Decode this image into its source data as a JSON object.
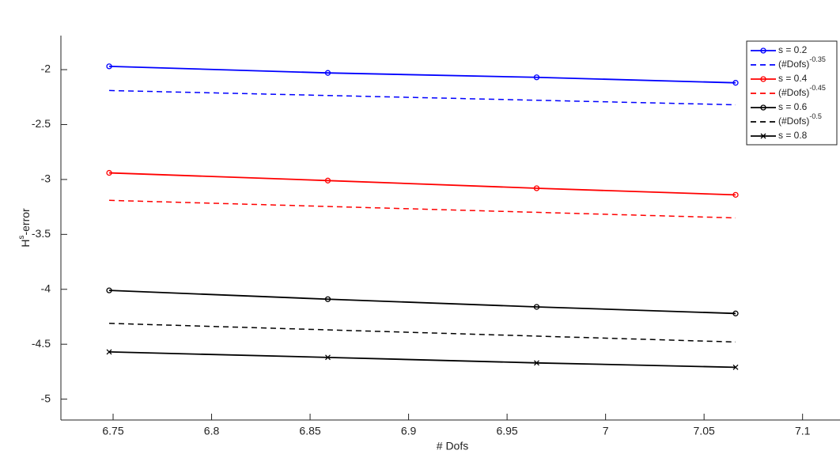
{
  "chart_data": {
    "type": "line",
    "xlabel": "# Dofs",
    "ylabel": {
      "base": "H",
      "sup": "s",
      "rest": "-error"
    },
    "xlim": [
      6.7235,
      7.119
    ],
    "ylim": [
      -5.19,
      -1.69
    ],
    "xticks": [
      6.75,
      6.8,
      6.85,
      6.9,
      6.95,
      7,
      7.05,
      7.1
    ],
    "yticks": [
      -2,
      -2.5,
      -3,
      -3.5,
      -4,
      -4.5,
      -5
    ],
    "grid": false,
    "legend": "upper right",
    "series": [
      {
        "name": "s = 0.2",
        "color": "#0000ff",
        "dash": false,
        "marker": "o",
        "x": [
          6.748,
          6.859,
          6.965,
          7.066
        ],
        "values": [
          -1.97,
          -2.03,
          -2.07,
          -2.12
        ]
      },
      {
        "name": "(#Dofs)",
        "name_sup": "-0.35",
        "color": "#0000ff",
        "dash": true,
        "x": [
          6.748,
          7.066
        ],
        "values": [
          -2.19,
          -2.32
        ]
      },
      {
        "name": "s = 0.4",
        "color": "#ff0000",
        "dash": false,
        "marker": "o",
        "x": [
          6.748,
          6.859,
          6.965,
          7.066
        ],
        "values": [
          -2.94,
          -3.01,
          -3.08,
          -3.14
        ]
      },
      {
        "name": "(#Dofs)",
        "name_sup": "-0.45",
        "color": "#ff0000",
        "dash": true,
        "x": [
          6.748,
          7.066
        ],
        "values": [
          -3.19,
          -3.35
        ]
      },
      {
        "name": "s = 0.6",
        "color": "#000000",
        "dash": false,
        "marker": "o",
        "x": [
          6.748,
          6.859,
          6.965,
          7.066
        ],
        "values": [
          -4.01,
          -4.09,
          -4.16,
          -4.22
        ]
      },
      {
        "name": "(#Dofs)",
        "name_sup": "-0.5",
        "color": "#000000",
        "dash": true,
        "x": [
          6.748,
          7.066
        ],
        "values": [
          -4.31,
          -4.48
        ]
      },
      {
        "name": "s = 0.8",
        "color": "#000000",
        "dash": false,
        "marker": "x",
        "x": [
          6.748,
          6.859,
          6.965,
          7.066
        ],
        "values": [
          -4.57,
          -4.62,
          -4.67,
          -4.71
        ]
      }
    ]
  }
}
